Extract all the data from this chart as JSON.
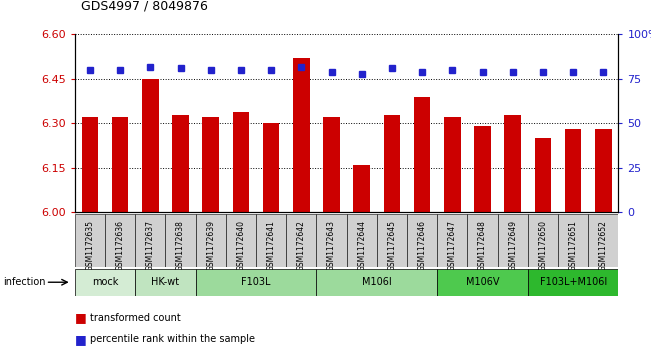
{
  "title": "GDS4997 / 8049876",
  "samples": [
    "GSM1172635",
    "GSM1172636",
    "GSM1172637",
    "GSM1172638",
    "GSM1172639",
    "GSM1172640",
    "GSM1172641",
    "GSM1172642",
    "GSM1172643",
    "GSM1172644",
    "GSM1172645",
    "GSM1172646",
    "GSM1172647",
    "GSM1172648",
    "GSM1172649",
    "GSM1172650",
    "GSM1172651",
    "GSM1172652"
  ],
  "transformed_counts": [
    6.32,
    6.32,
    6.45,
    6.33,
    6.32,
    6.34,
    6.3,
    6.52,
    6.32,
    6.16,
    6.33,
    6.39,
    6.32,
    6.29,
    6.33,
    6.25,
    6.28,
    6.28
  ],
  "percentile_ranks": [
    80,
    80,
    82,
    81,
    80,
    80,
    80,
    82,
    79,
    78,
    81,
    79,
    80,
    79,
    79,
    79,
    79,
    79
  ],
  "ylim_left": [
    6.0,
    6.6
  ],
  "ylim_right": [
    0,
    100
  ],
  "yticks_left": [
    6.0,
    6.15,
    6.3,
    6.45,
    6.6
  ],
  "yticks_right": [
    0,
    25,
    50,
    75,
    100
  ],
  "groups": [
    {
      "label": "mock",
      "start": 0,
      "end": 2,
      "color": "#d4ecd4"
    },
    {
      "label": "HK-wt",
      "start": 2,
      "end": 4,
      "color": "#c0e4c0"
    },
    {
      "label": "F103L",
      "start": 4,
      "end": 8,
      "color": "#9cda9c"
    },
    {
      "label": "M106I",
      "start": 8,
      "end": 12,
      "color": "#9cda9c"
    },
    {
      "label": "M106V",
      "start": 12,
      "end": 15,
      "color": "#4ec94e"
    },
    {
      "label": "F103L+M106I",
      "start": 15,
      "end": 18,
      "color": "#2db82d"
    }
  ],
  "infection_label": "infection",
  "bar_color": "#cc0000",
  "dot_color": "#2222cc",
  "tick_color_left": "#cc0000",
  "tick_color_right": "#2222cc",
  "sample_box_color": "#d0d0d0",
  "bar_width": 0.55
}
